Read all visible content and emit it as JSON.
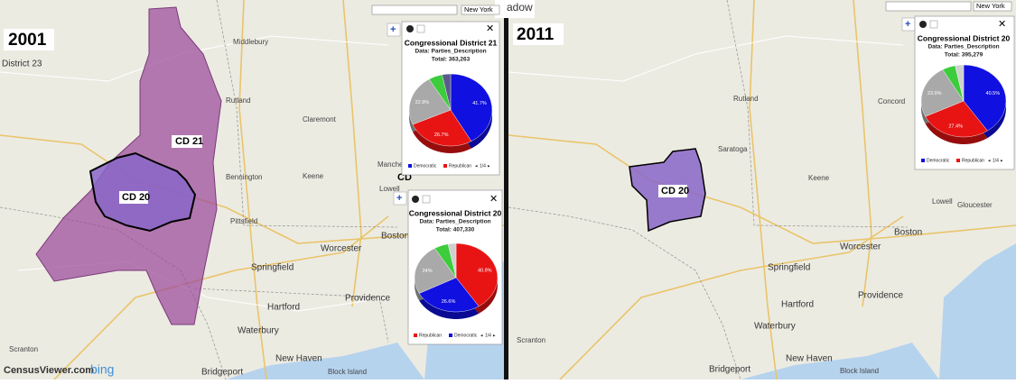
{
  "toolbar": {
    "partial_title": "adow",
    "dropdown_left": "New York",
    "dropdown_right": "New York"
  },
  "branding": {
    "census": "CensusViewer.com",
    "bing": "bing"
  },
  "panels": [
    {
      "year": "2001",
      "district_labels": [
        "District 23",
        "CD 21",
        "CD 20",
        "CD"
      ],
      "places": [
        "Middlebury",
        "Rutland",
        "Claremont",
        "Keene",
        "Bennington",
        "Pittsfield",
        "Worcester",
        "Springfield",
        "Hartford",
        "Providence",
        "Waterbury",
        "New Haven",
        "Bridgeport",
        "Boston",
        "Manchester",
        "Lowell",
        "Scranton",
        "Block Island"
      ]
    },
    {
      "year": "2011",
      "district_labels": [
        "CD 20"
      ],
      "places": [
        "Saratoga",
        "Rutland",
        "Keene",
        "Lowell",
        "Boston",
        "Gloucester",
        "Worcester",
        "Springfield",
        "Hartford",
        "Providence",
        "Waterbury",
        "New Haven",
        "Bridgeport",
        "Scranton",
        "Block Island",
        "Concord"
      ]
    }
  ],
  "chart_data": [
    {
      "type": "pie",
      "title": "Congressional District 21",
      "subtitle": "Data: Parties_Description",
      "total": "Total: 363,263",
      "categories": [
        "Democratic",
        "Republican",
        null,
        null,
        null
      ],
      "values": [
        41.7,
        26.7,
        22.9,
        5.4,
        3.3
      ],
      "value_labels": [
        "41.7%",
        "26.7%",
        "22.9%",
        null,
        null
      ],
      "colors": [
        "#1010e0",
        "#e81414",
        "#a9a9a9",
        "#3ccc3c",
        "#5a5a8a"
      ],
      "legend_page": "1/4"
    },
    {
      "type": "pie",
      "title": "Congressional District 20",
      "subtitle": "Data: Parties_Description",
      "total": "Total: 407,330",
      "categories": [
        "Republican",
        "Democratic",
        null,
        null,
        null
      ],
      "values": [
        40.8,
        26.6,
        24,
        5.5,
        3.1
      ],
      "value_labels": [
        "40.8%",
        "26.6%",
        "24%",
        null,
        null
      ],
      "colors": [
        "#e81414",
        "#1010e0",
        "#a9a9a9",
        "#3ccc3c",
        "#d0d0d0"
      ],
      "legend_page": "1/4"
    },
    {
      "type": "pie",
      "title": "Congressional District 20",
      "subtitle": "Data: Parties_Description",
      "total": "Total: 395,279",
      "categories": [
        "Democratic",
        "Republican",
        null,
        null,
        null
      ],
      "values": [
        40.5,
        27.4,
        23.9,
        5,
        3.2
      ],
      "value_labels": [
        "40.5%",
        "27.4%",
        "23.9%",
        null,
        null
      ],
      "colors": [
        "#1010e0",
        "#e81414",
        "#a9a9a9",
        "#3ccc3c",
        "#d0d0d0"
      ],
      "legend_page": "1/4"
    }
  ]
}
